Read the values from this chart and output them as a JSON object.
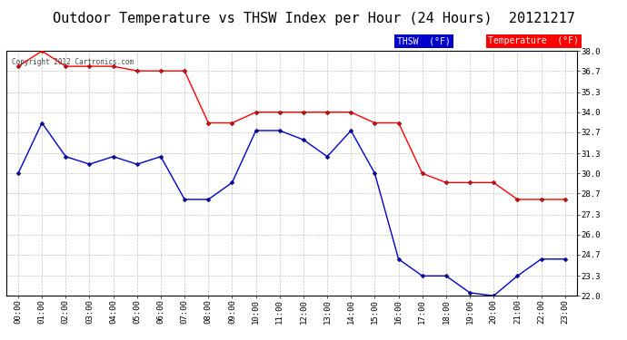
{
  "title": "Outdoor Temperature vs THSW Index per Hour (24 Hours)  20121217",
  "copyright": "Copyright 2012 Cartronics.com",
  "x_labels": [
    "00:00",
    "01:00",
    "02:00",
    "03:00",
    "04:00",
    "05:00",
    "06:00",
    "07:00",
    "08:00",
    "09:00",
    "10:00",
    "11:00",
    "12:00",
    "13:00",
    "14:00",
    "15:00",
    "16:00",
    "17:00",
    "18:00",
    "19:00",
    "20:00",
    "21:00",
    "22:00",
    "23:00"
  ],
  "temperature": [
    37.0,
    38.0,
    37.0,
    37.0,
    37.0,
    36.7,
    36.7,
    36.7,
    33.3,
    33.3,
    34.0,
    34.0,
    34.0,
    34.0,
    34.0,
    33.3,
    33.3,
    30.0,
    29.4,
    29.4,
    29.4,
    28.3,
    28.3,
    28.3
  ],
  "thsw": [
    30.0,
    33.3,
    31.1,
    30.6,
    31.1,
    30.6,
    31.1,
    28.3,
    28.3,
    29.4,
    32.8,
    32.8,
    32.2,
    31.1,
    32.8,
    30.0,
    24.4,
    23.3,
    23.3,
    22.2,
    22.0,
    23.3,
    24.4,
    24.4
  ],
  "ylim": [
    22.0,
    38.0
  ],
  "yticks": [
    22.0,
    23.3,
    24.7,
    26.0,
    27.3,
    28.7,
    30.0,
    31.3,
    32.7,
    34.0,
    35.3,
    36.7,
    38.0
  ],
  "bg_color": "#ffffff",
  "plot_bg_color": "#ffffff",
  "grid_color": "#bbbbbb",
  "temp_color": "#ff0000",
  "thsw_color": "#0000cc",
  "title_color": "#000000",
  "title_fontsize": 11,
  "copyright_color": "#444444",
  "legend_thsw_bg": "#0000cc",
  "legend_temp_bg": "#ff0000",
  "legend_text_color": "#ffffff",
  "legend_thsw_label": "THSW  (°F)",
  "legend_temp_label": "Temperature  (°F)"
}
